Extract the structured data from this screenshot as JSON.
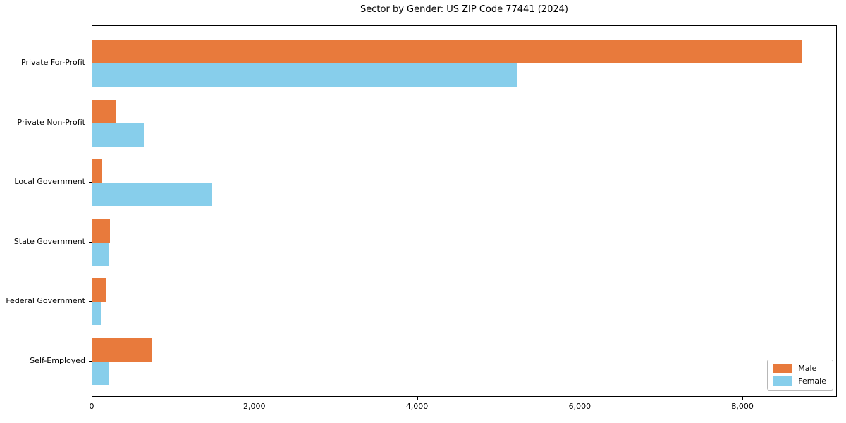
{
  "chart_data": {
    "type": "bar",
    "orientation": "horizontal",
    "title": "Sector by Gender: US ZIP Code 77441 (2024)",
    "categories": [
      "Private For-Profit",
      "Private Non-Profit",
      "Local Government",
      "State Government",
      "Federal Government",
      "Self-Employed"
    ],
    "series": [
      {
        "name": "Male",
        "color": "#e87a3c",
        "values": [
          8715,
          290,
          113,
          216,
          173,
          730
        ]
      },
      {
        "name": "Female",
        "color": "#87ceeb",
        "values": [
          5225,
          635,
          1470,
          210,
          100,
          200
        ]
      }
    ],
    "xlabel": "",
    "ylabel": "",
    "xlim": [
      0,
      9160
    ],
    "xticks": [
      0,
      2000,
      4000,
      6000,
      8000
    ],
    "xtick_labels": [
      "0",
      "2,000",
      "4,000",
      "6,000",
      "8,000"
    ],
    "grid": false,
    "legend": {
      "position": "lower right",
      "entries": [
        "Male",
        "Female"
      ]
    },
    "colors": {
      "male": "#e87a3c",
      "female": "#87ceeb",
      "axis": "#000000",
      "background": "#ffffff"
    }
  }
}
